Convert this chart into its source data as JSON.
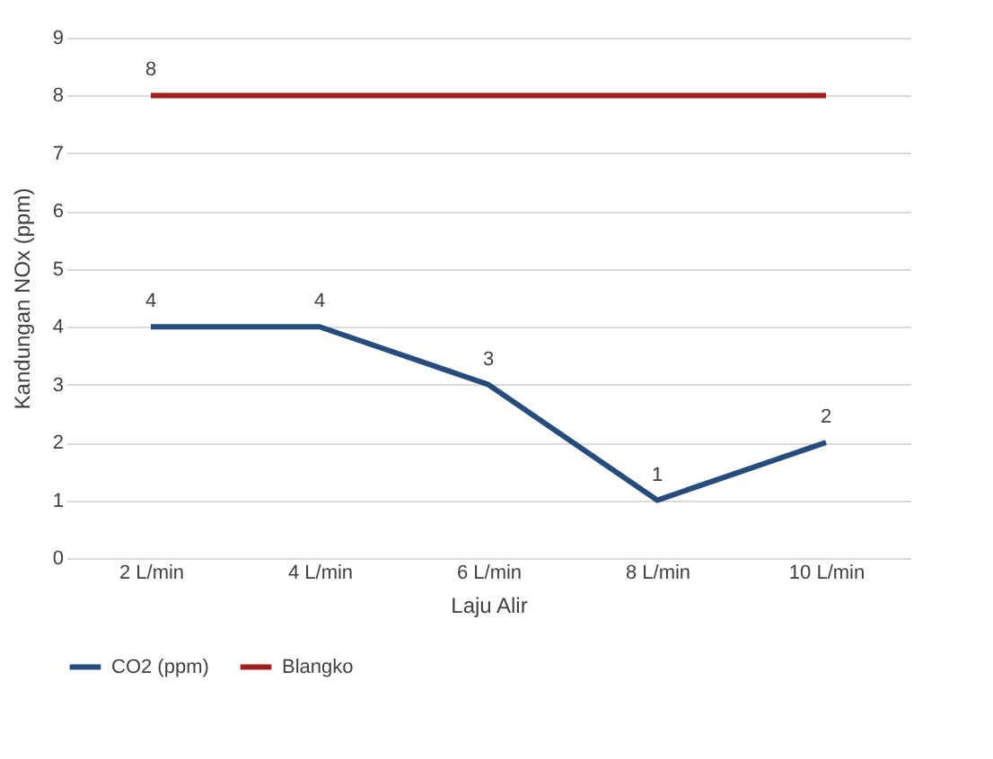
{
  "chart_data": {
    "type": "line",
    "xlabel": "Laju Alir",
    "ylabel": "Kandungan NOx (ppm)",
    "categories": [
      "2 L/min",
      "4 L/min",
      "6 L/min",
      "8 L/min",
      "10 L/min"
    ],
    "series": [
      {
        "name": "CO2 (ppm)",
        "color": "#264c7e",
        "values": [
          4,
          4,
          3,
          1,
          2
        ],
        "value_labels": [
          "4",
          "4",
          "3",
          "1",
          "2"
        ]
      },
      {
        "name": "Blangko",
        "color": "#a01f1f",
        "values": [
          8,
          8,
          8,
          8,
          8
        ],
        "value_labels": [
          "8",
          null,
          null,
          null,
          null
        ]
      }
    ],
    "ylim": [
      0,
      9
    ],
    "yticks": [
      0,
      1,
      2,
      3,
      4,
      5,
      6,
      7,
      8,
      9
    ],
    "grid": "y",
    "legend": "bottom",
    "marker": "none",
    "line_style": "solid"
  }
}
